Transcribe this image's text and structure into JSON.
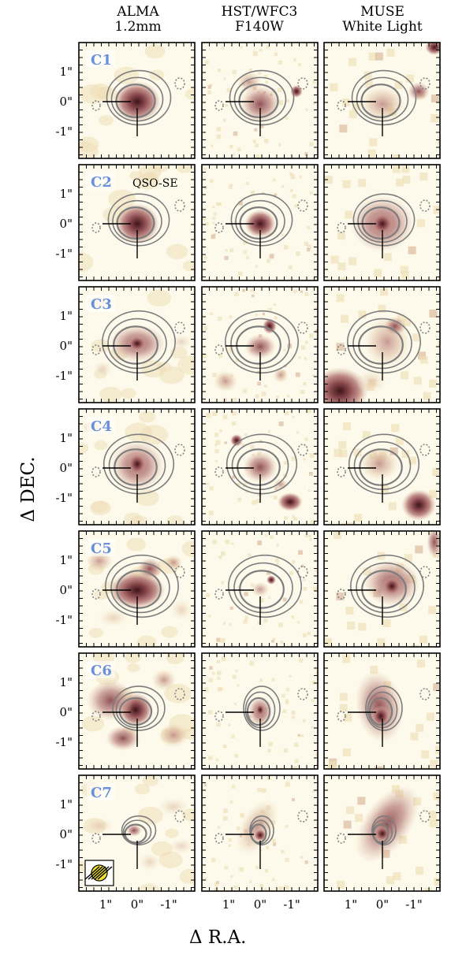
{
  "figure": {
    "column_titles": [
      {
        "line1": "ALMA",
        "line2": "1.2mm"
      },
      {
        "line1": "HST/WFC3",
        "line2": "F140W"
      },
      {
        "line1": "MUSE",
        "line2": "White Light"
      }
    ],
    "row_labels": [
      "C1",
      "C2",
      "C3",
      "C4",
      "C5",
      "C6",
      "C7"
    ],
    "panel_annotation": "QSO-SE",
    "y_tick_labels": [
      "1\"",
      "0\"",
      "-1\""
    ],
    "x_tick_labels": [
      "1\"",
      "0\"",
      "-1\""
    ],
    "y_axis_label": "Δ DEC.",
    "x_axis_label": "Δ R.A.",
    "colors": {
      "row_label": "#6b8fd9",
      "contour": "#7d7d7d",
      "colormap": [
        "#fdfaec",
        "#eedfb8",
        "#dbb99e",
        "#b9807d",
        "#8a4a4f",
        "#3e1418"
      ]
    }
  }
}
